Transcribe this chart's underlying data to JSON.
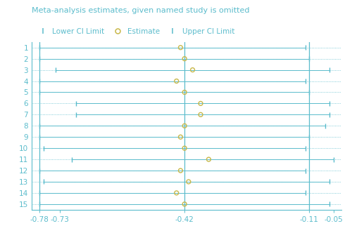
{
  "title": "Meta-analysis estimates, given named study is omitted",
  "xlabel_ticks": [
    -0.78,
    -0.73,
    -0.42,
    -0.11,
    -0.05
  ],
  "xlabel_tick_labels": [
    "-0.78",
    "-0.73",
    "-0.42",
    "-0.11",
    "-0.05"
  ],
  "xlim": [
    -0.8,
    -0.03
  ],
  "ylim": [
    0.5,
    15.5
  ],
  "n_rows": 15,
  "vline_positions": [
    -0.78,
    -0.42,
    -0.11
  ],
  "vline_color": "#5bbccc",
  "dot_color": "#c8b84a",
  "line_color": "#5bbccc",
  "bg_color": "#ffffff",
  "rows": [
    {
      "y": 1,
      "lower": -0.78,
      "estimate": -0.43,
      "upper": -0.12
    },
    {
      "y": 2,
      "lower": -0.78,
      "estimate": -0.42,
      "upper": -0.11
    },
    {
      "y": 3,
      "lower": -0.74,
      "estimate": -0.4,
      "upper": -0.06
    },
    {
      "y": 4,
      "lower": -0.78,
      "estimate": -0.44,
      "upper": -0.12
    },
    {
      "y": 5,
      "lower": -0.78,
      "estimate": -0.42,
      "upper": -0.11
    },
    {
      "y": 6,
      "lower": -0.69,
      "estimate": -0.38,
      "upper": -0.06
    },
    {
      "y": 7,
      "lower": -0.69,
      "estimate": -0.38,
      "upper": -0.06
    },
    {
      "y": 8,
      "lower": -0.78,
      "estimate": -0.42,
      "upper": -0.07
    },
    {
      "y": 9,
      "lower": -0.78,
      "estimate": -0.43,
      "upper": -0.11
    },
    {
      "y": 10,
      "lower": -0.77,
      "estimate": -0.42,
      "upper": -0.12
    },
    {
      "y": 11,
      "lower": -0.7,
      "estimate": -0.36,
      "upper": -0.05
    },
    {
      "y": 12,
      "lower": -0.78,
      "estimate": -0.43,
      "upper": -0.12
    },
    {
      "y": 13,
      "lower": -0.77,
      "estimate": -0.41,
      "upper": -0.06
    },
    {
      "y": 14,
      "lower": -0.78,
      "estimate": -0.44,
      "upper": -0.12
    },
    {
      "y": 15,
      "lower": -0.78,
      "estimate": -0.42,
      "upper": -0.06
    }
  ],
  "title_color": "#5bbccc",
  "axis_color": "#5bbccc",
  "tick_color": "#5bbccc",
  "title_fontsize": 8.0,
  "legend_fontsize": 7.5,
  "ytick_fontsize": 7.5,
  "xtick_fontsize": 7.5,
  "dot_size": 18,
  "dot_linewidth": 1.0,
  "ci_linewidth": 0.7,
  "tick_linewidth": 1.0
}
